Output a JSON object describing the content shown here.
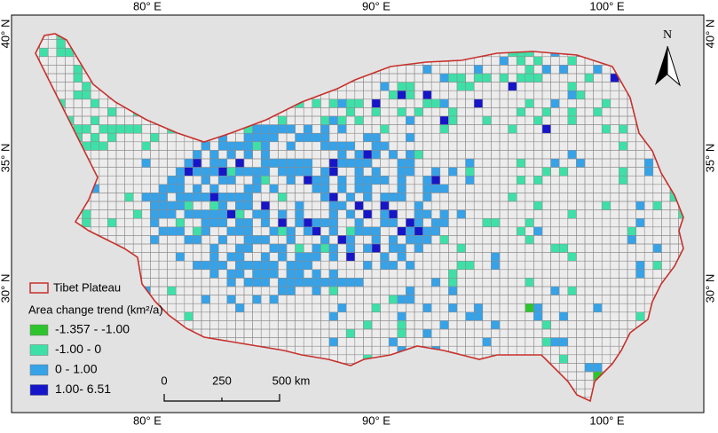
{
  "map": {
    "lon_labels": [
      "80° E",
      "90° E",
      "100° E"
    ],
    "lat_labels": [
      "40° N",
      "35° N",
      "30° N"
    ],
    "north": "N",
    "legend": {
      "boundary": "Tibet Plateau",
      "title": "Area change trend (km²/a)",
      "classes": [
        {
          "label": "-1.357 - -1.00",
          "color": "#2ec42e"
        },
        {
          "label": "-1.00 - 0",
          "color": "#3ee0a8"
        },
        {
          "label": "0 - 1.00",
          "color": "#36a2e8"
        },
        {
          "label": "1.00- 6.51",
          "color": "#1616c8"
        }
      ]
    },
    "scale_bar": [
      "0",
      "250",
      "500 km"
    ]
  }
}
